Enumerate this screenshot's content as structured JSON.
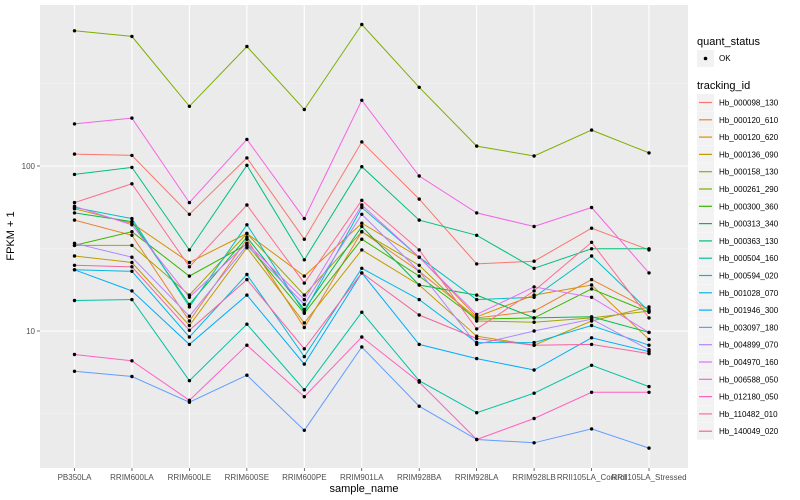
{
  "chart_data": {
    "type": "line",
    "title": "",
    "xlabel": "sample_name",
    "ylabel": "FPKM + 1",
    "y_scale": "log10",
    "ylim": [
      1.6,
      1000
    ],
    "y_ticks": [
      10,
      100
    ],
    "y_tick_labels": [
      "10",
      "100"
    ],
    "grid": true,
    "legend_position": "right",
    "categories": [
      "PB350LA",
      "RRIM600LA",
      "RRIM600LE",
      "RRIM600SE",
      "RRIM600PE",
      "RRIM901LA",
      "RRIM928BA",
      "RRIM928LA",
      "RRIM928LB",
      "RRII105LA_Control",
      "RRII105LA_Stressed"
    ],
    "shape_legend": {
      "title": "quant_status",
      "entries": [
        "OK"
      ]
    },
    "color_legend_title": "tracking_id",
    "series": [
      {
        "name": "Hb_000098_130",
        "color": "#F8766D",
        "values": [
          118,
          116,
          51,
          112,
          36,
          140,
          63,
          25.5,
          26.5,
          42,
          31
        ]
      },
      {
        "name": "Hb_000120_610",
        "color": "#EA8331",
        "values": [
          47,
          38,
          11.5,
          36,
          10.5,
          40,
          23,
          12.0,
          13.2,
          20.5,
          13.5
        ]
      },
      {
        "name": "Hb_000120_620",
        "color": "#D89000",
        "values": [
          55,
          45,
          26,
          39,
          21.5,
          45,
          28,
          12.2,
          16.5,
          19,
          8.9
        ]
      },
      {
        "name": "Hb_000136_090",
        "color": "#C09B00",
        "values": [
          28.5,
          26,
          10.8,
          32,
          11.2,
          31,
          19,
          9.3,
          8.2,
          11.5,
          14.0
        ]
      },
      {
        "name": "Hb_000158_130",
        "color": "#A3A500",
        "values": [
          33,
          33,
          16.5,
          39,
          16.5,
          40,
          25,
          11.5,
          11.3,
          12,
          13.2
        ]
      },
      {
        "name": "Hb_000261_290",
        "color": "#7CAE00",
        "values": [
          660,
          610,
          230,
          530,
          220,
          720,
          300,
          132,
          115,
          165,
          120
        ]
      },
      {
        "name": "Hb_000300_360",
        "color": "#39B600",
        "values": [
          33,
          40,
          21.5,
          33.5,
          12.8,
          36,
          21.5,
          11.8,
          12.0,
          18,
          13.0
        ]
      },
      {
        "name": "Hb_000313_340",
        "color": "#00BB4E",
        "values": [
          52,
          46,
          14.5,
          37,
          13.5,
          43,
          19,
          16.5,
          12.0,
          12.2,
          9.8
        ]
      },
      {
        "name": "Hb_000363_130",
        "color": "#00BF7D",
        "values": [
          89,
          98,
          31,
          101,
          27,
          99,
          47,
          38,
          24,
          31.5,
          31.5
        ]
      },
      {
        "name": "Hb_000504_160",
        "color": "#00C1A3",
        "values": [
          15.3,
          15.5,
          5.0,
          11,
          4.4,
          13,
          5.0,
          3.2,
          4.2,
          6.2,
          4.6
        ]
      },
      {
        "name": "Hb_000594_020",
        "color": "#00BFC4",
        "values": [
          56,
          48,
          14.0,
          44,
          13.0,
          56,
          28,
          15.5,
          16.0,
          28.5,
          13.2
        ]
      },
      {
        "name": "Hb_001028_070",
        "color": "#00B9E3",
        "values": [
          23.5,
          23,
          9.2,
          22,
          7.0,
          24,
          15.5,
          8.5,
          8.5,
          10.8,
          8.2
        ]
      },
      {
        "name": "Hb_001946_300",
        "color": "#00ADFA",
        "values": [
          23.5,
          17.5,
          8.3,
          16.5,
          6.3,
          22.5,
          8.3,
          6.8,
          5.8,
          9.1,
          7.5
        ]
      },
      {
        "name": "Hb_003097_180",
        "color": "#619CFF",
        "values": [
          5.7,
          5.3,
          3.7,
          5.4,
          2.5,
          8.0,
          3.5,
          2.2,
          2.1,
          2.55,
          1.95
        ]
      },
      {
        "name": "Hb_004899_070",
        "color": "#AE87FF",
        "values": [
          34,
          28,
          12.3,
          33,
          14.5,
          51,
          23,
          8.3,
          10.0,
          11.8,
          7.7
        ]
      },
      {
        "name": "Hb_004970_160",
        "color": "#DB72FB",
        "values": [
          57,
          44,
          16.0,
          34,
          15.5,
          58,
          28,
          12.6,
          18.5,
          16.0,
          9.8
        ]
      },
      {
        "name": "Hb_006588_050",
        "color": "#F564E3",
        "values": [
          180,
          195,
          60,
          145,
          48,
          250,
          87,
          52,
          43,
          56,
          22.5
        ]
      },
      {
        "name": "Hb_012180_050",
        "color": "#FF61C3",
        "values": [
          7.2,
          6.6,
          3.8,
          8.2,
          4.0,
          9.2,
          4.9,
          2.2,
          2.95,
          4.25,
          4.25
        ]
      },
      {
        "name": "Hb_110482_010",
        "color": "#FF6C91",
        "values": [
          60,
          78,
          24.5,
          58,
          19.5,
          62,
          31,
          10.3,
          17.5,
          34.5,
          12.0
        ]
      },
      {
        "name": "Hb_140049_020",
        "color": "#F564A0",
        "values": [
          25,
          24.5,
          10.1,
          20.5,
          7.8,
          22.5,
          12.5,
          9.0,
          8.2,
          8.3,
          7.3
        ]
      }
    ]
  }
}
